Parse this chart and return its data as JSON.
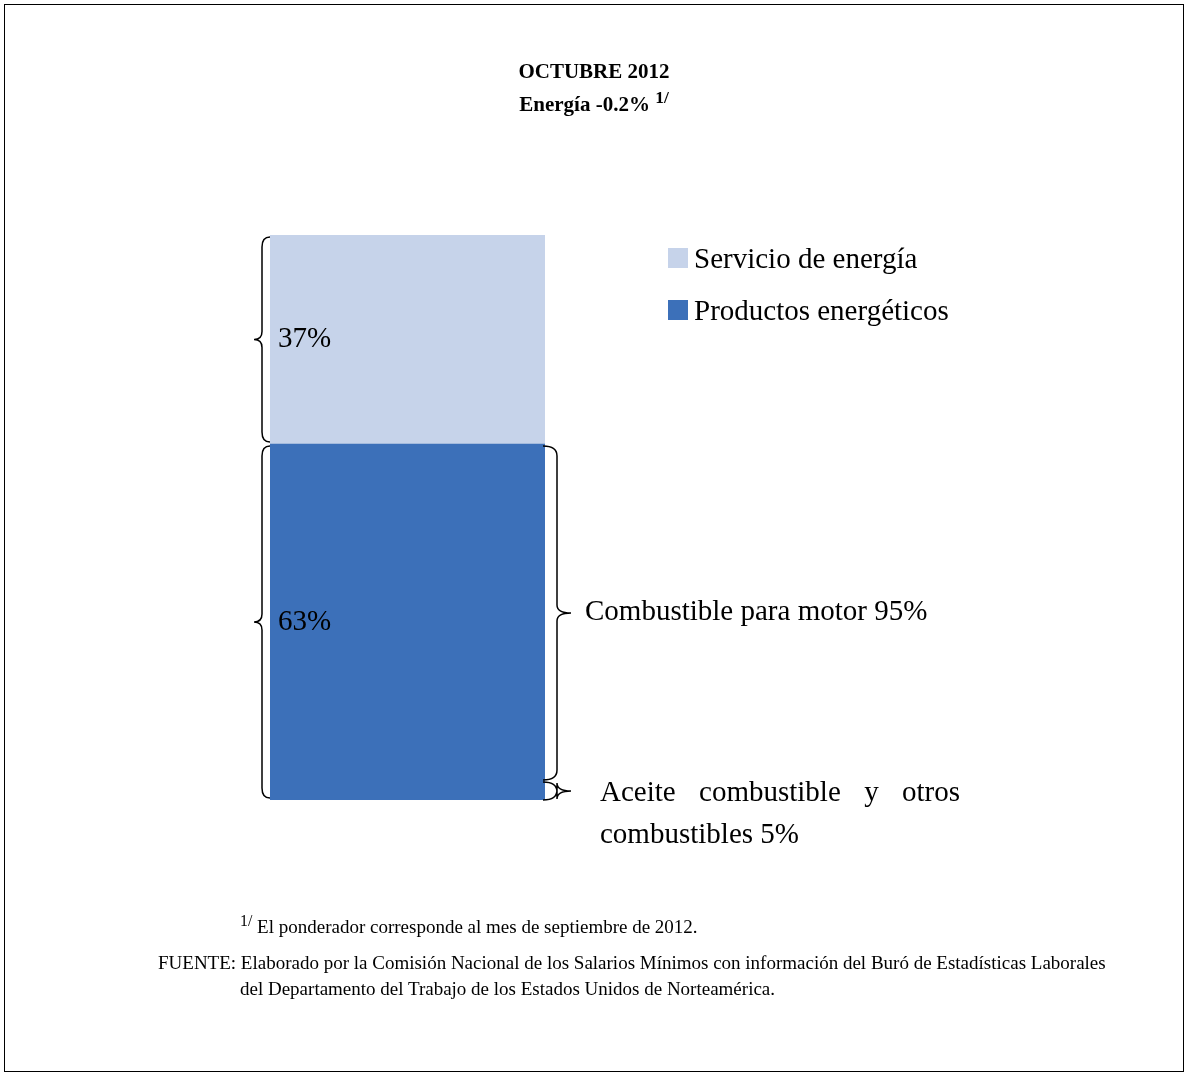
{
  "chart_data": {
    "type": "bar",
    "title": "OCTUBRE 2012",
    "subtitle": "Energía -0.2% $^{1/}$",
    "categories": [
      null
    ],
    "stacked": true,
    "legend": "top right",
    "series": [
      {
        "name": "Productos energéticos",
        "color": "#3c70b9",
        "values": [
          63
        ],
        "value_labels": [
          "63%"
        ]
      },
      {
        "name": "Servicio de energía",
        "color": "#c6d3ea",
        "values": [
          37
        ],
        "value_labels": [
          "37%"
        ]
      }
    ],
    "annotations": [
      "Combustible para motor  95%",
      "Aceite combustible y otros combustibles  5%",
      "$^{1/}$ El ponderador corresponde al mes de septiembre de 2012.",
      "FUENTE: Elaborado por la Comisión Nacional de los Salarios Mínimos con información del Buró de Estadísticas Laborales del Departamento del Trabajo de los Estados Unidos de Norteamérica."
    ]
  }
}
